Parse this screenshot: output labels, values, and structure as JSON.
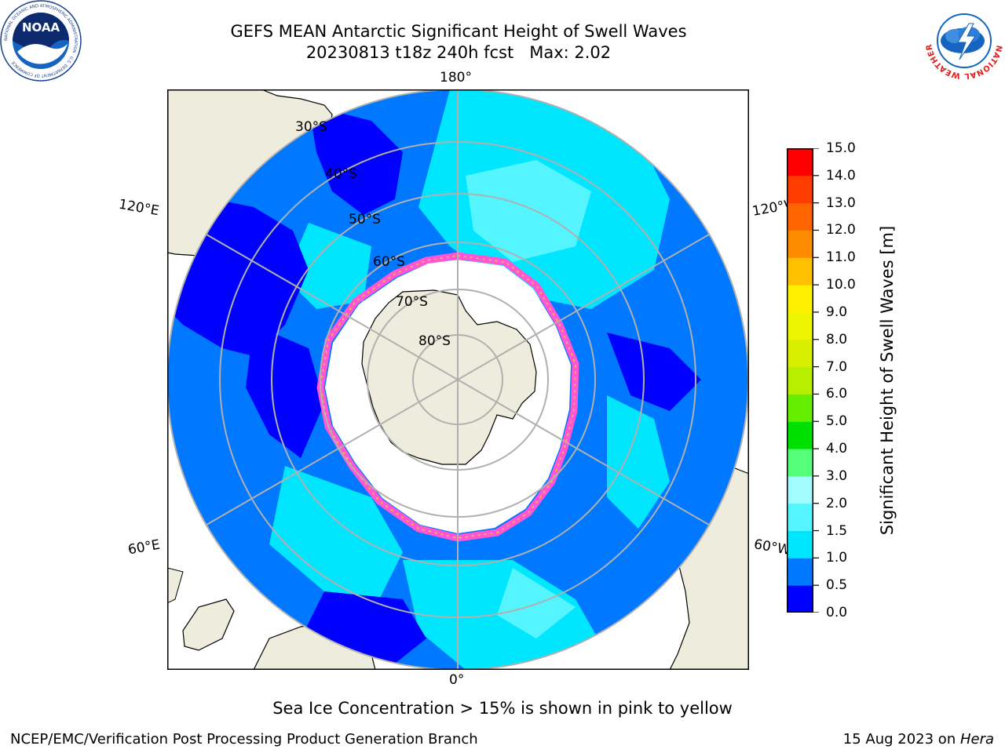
{
  "header": {
    "title_line1": "GEFS MEAN Antarctic Significant Height of Swell Waves",
    "title_line2": "20230813 t18z 240h fcst   Max: 2.02"
  },
  "logos": {
    "left": {
      "text": "NOAA",
      "ring_text": "NATIONAL OCEANIC AND ATMOSPHERIC ADMINISTRATION · U.S. DEPARTMENT OF COMMERCE"
    },
    "right": {
      "ring_text": "NATIONAL WEATHER SERVICE"
    }
  },
  "map": {
    "projection": "south-polar-stereographic",
    "meridian_labels": {
      "top": "180°",
      "bottom": "0°",
      "left_upper": "120°E",
      "left_lower": "60°E",
      "right_upper": "120°W",
      "right_lower": "60°W"
    },
    "parallel_labels": [
      "30°S",
      "40°S",
      "50°S",
      "60°S",
      "70°S",
      "80°S"
    ],
    "colors": {
      "land": "#eeecdc",
      "sea_ice_no_data": "#ffffff",
      "sea_ice_edge": "#ff55d6",
      "sea_ice_inner": "#ffb347",
      "grid": "#b0b0b0"
    }
  },
  "colorbar": {
    "label": "Significant Height of Swell Waves [m]",
    "ticks": [
      "0.0",
      "0.5",
      "1.0",
      "1.5",
      "2.0",
      "3.0",
      "4.0",
      "5.0",
      "6.0",
      "7.0",
      "8.0",
      "9.0",
      "10.0",
      "11.0",
      "12.0",
      "13.0",
      "14.0",
      "15.0"
    ],
    "bins": [
      {
        "from": 0.0,
        "to": 0.5,
        "color": "#0000ff"
      },
      {
        "from": 0.5,
        "to": 1.0,
        "color": "#0078ff"
      },
      {
        "from": 1.0,
        "to": 1.5,
        "color": "#00e6ff"
      },
      {
        "from": 1.5,
        "to": 2.0,
        "color": "#55f5ff"
      },
      {
        "from": 2.0,
        "to": 3.0,
        "color": "#a0fcff"
      },
      {
        "from": 3.0,
        "to": 4.0,
        "color": "#55ff7a"
      },
      {
        "from": 4.0,
        "to": 5.0,
        "color": "#00e000"
      },
      {
        "from": 5.0,
        "to": 6.0,
        "color": "#66ee00"
      },
      {
        "from": 6.0,
        "to": 7.0,
        "color": "#b8ee00"
      },
      {
        "from": 7.0,
        "to": 8.0,
        "color": "#d8f000"
      },
      {
        "from": 8.0,
        "to": 9.0,
        "color": "#eef500"
      },
      {
        "from": 9.0,
        "to": 10.0,
        "color": "#fff000"
      },
      {
        "from": 10.0,
        "to": 11.0,
        "color": "#ffc000"
      },
      {
        "from": 11.0,
        "to": 12.0,
        "color": "#ff8c00"
      },
      {
        "from": 12.0,
        "to": 13.0,
        "color": "#ff6400"
      },
      {
        "from": 13.0,
        "to": 14.0,
        "color": "#ff3c00"
      },
      {
        "from": 14.0,
        "to": 15.0,
        "color": "#ff0000"
      }
    ]
  },
  "note": "Sea Ice Concentration > 15% is shown in pink to yellow",
  "footer": {
    "left": "NCEP/EMC/Verification Post Processing Product Generation Branch",
    "right_date": "15 Aug 2023 on ",
    "right_host": "Hera"
  }
}
